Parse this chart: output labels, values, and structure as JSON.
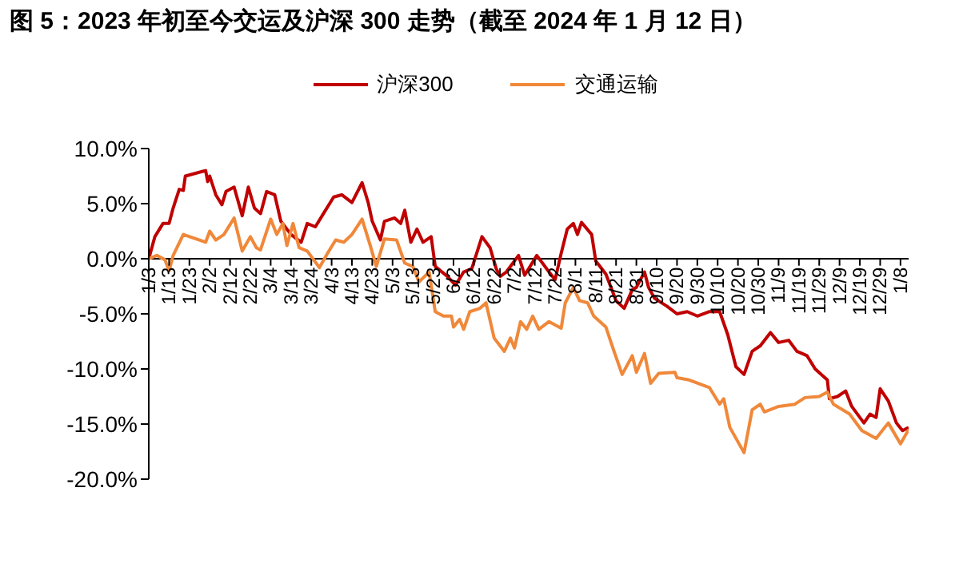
{
  "chart_data": {
    "type": "line",
    "title": "图 5：2023 年初至今交运及沪深 300 走势（截至 2024 年 1 月 12 日）",
    "legend": "top",
    "grid": false,
    "marker": "none",
    "line_style": "solid",
    "xlim": [
      "2023-01-03",
      "2024-01-12"
    ],
    "xticks": [
      {
        "value": "2023-01-03",
        "label": "1/3"
      },
      {
        "value": "2023-01-13",
        "label": "1/13"
      },
      {
        "value": "2023-01-23",
        "label": "1/23"
      },
      {
        "value": "2023-02-02",
        "label": "2/2"
      },
      {
        "value": "2023-02-12",
        "label": "2/12"
      },
      {
        "value": "2023-02-22",
        "label": "2/22"
      },
      {
        "value": "2023-03-04",
        "label": "3/4"
      },
      {
        "value": "2023-03-14",
        "label": "3/14"
      },
      {
        "value": "2023-03-24",
        "label": "3/24"
      },
      {
        "value": "2023-04-03",
        "label": "4/3"
      },
      {
        "value": "2023-04-13",
        "label": "4/13"
      },
      {
        "value": "2023-04-23",
        "label": "4/23"
      },
      {
        "value": "2023-05-03",
        "label": "5/3"
      },
      {
        "value": "2023-05-13",
        "label": "5/13"
      },
      {
        "value": "2023-05-23",
        "label": "5/23"
      },
      {
        "value": "2023-06-02",
        "label": "6/2"
      },
      {
        "value": "2023-06-12",
        "label": "6/12"
      },
      {
        "value": "2023-06-22",
        "label": "6/22"
      },
      {
        "value": "2023-07-02",
        "label": "7/2"
      },
      {
        "value": "2023-07-12",
        "label": "7/12"
      },
      {
        "value": "2023-07-22",
        "label": "7/22"
      },
      {
        "value": "2023-08-01",
        "label": "8/1"
      },
      {
        "value": "2023-08-11",
        "label": "8/11"
      },
      {
        "value": "2023-08-21",
        "label": "8/21"
      },
      {
        "value": "2023-08-31",
        "label": "8/31"
      },
      {
        "value": "2023-09-10",
        "label": "9/10"
      },
      {
        "value": "2023-09-20",
        "label": "9/20"
      },
      {
        "value": "2023-09-30",
        "label": "9/30"
      },
      {
        "value": "2023-10-10",
        "label": "10/10"
      },
      {
        "value": "2023-10-20",
        "label": "10/20"
      },
      {
        "value": "2023-10-30",
        "label": "10/30"
      },
      {
        "value": "2023-11-09",
        "label": "11/9"
      },
      {
        "value": "2023-11-19",
        "label": "11/19"
      },
      {
        "value": "2023-11-29",
        "label": "11/29"
      },
      {
        "value": "2023-12-09",
        "label": "12/9"
      },
      {
        "value": "2023-12-19",
        "label": "12/19"
      },
      {
        "value": "2023-12-29",
        "label": "12/29"
      },
      {
        "value": "2024-01-08",
        "label": "1/8"
      }
    ],
    "ylim": [
      -20,
      10
    ],
    "yticks": [
      {
        "value": -20,
        "label": "-20.0%"
      },
      {
        "value": -15,
        "label": "-15.0%"
      },
      {
        "value": -10,
        "label": "-10.0%"
      },
      {
        "value": -5,
        "label": "-5.0%"
      },
      {
        "value": 0,
        "label": "0.0%"
      },
      {
        "value": 5,
        "label": "5.0%"
      },
      {
        "value": 10,
        "label": "10.0%"
      }
    ],
    "series": [
      {
        "name": "沪深300",
        "color": "#c00000",
        "x": [
          "2023-01-03",
          "2023-01-06",
          "2023-01-10",
          "2023-01-13",
          "2023-01-15",
          "2023-01-18",
          "2023-01-20",
          "2023-01-21",
          "2023-01-31",
          "2023-02-01",
          "2023-02-02",
          "2023-02-05",
          "2023-02-08",
          "2023-02-10",
          "2023-02-14",
          "2023-02-18",
          "2023-02-21",
          "2023-02-24",
          "2023-02-27",
          "2023-03-02",
          "2023-03-06",
          "2023-03-09",
          "2023-03-14",
          "2023-03-19",
          "2023-03-22",
          "2023-03-26",
          "2023-03-30",
          "2023-04-04",
          "2023-04-08",
          "2023-04-13",
          "2023-04-18",
          "2023-04-21",
          "2023-04-23",
          "2023-04-27",
          "2023-04-29",
          "2023-05-04",
          "2023-05-07",
          "2023-05-09",
          "2023-05-12",
          "2023-05-15",
          "2023-05-18",
          "2023-05-22",
          "2023-05-24",
          "2023-05-30",
          "2023-06-03",
          "2023-06-07",
          "2023-06-11",
          "2023-06-16",
          "2023-06-20",
          "2023-06-23",
          "2023-06-25",
          "2023-06-28",
          "2023-07-04",
          "2023-07-07",
          "2023-07-13",
          "2023-07-19",
          "2023-07-22",
          "2023-07-25",
          "2023-07-28",
          "2023-07-31",
          "2023-08-02",
          "2023-08-04",
          "2023-08-09",
          "2023-08-11",
          "2023-08-16",
          "2023-08-21",
          "2023-08-25",
          "2023-08-29",
          "2023-08-31",
          "2023-09-04",
          "2023-09-06",
          "2023-09-09",
          "2023-09-15",
          "2023-09-20",
          "2023-09-25",
          "2023-09-30",
          "2023-10-06",
          "2023-10-11",
          "2023-10-15",
          "2023-10-19",
          "2023-10-23",
          "2023-10-27",
          "2023-10-31",
          "2023-11-05",
          "2023-11-09",
          "2023-11-14",
          "2023-11-18",
          "2023-11-23",
          "2023-11-27",
          "2023-12-03",
          "2023-12-04",
          "2023-12-08",
          "2023-12-12",
          "2023-12-15",
          "2023-12-21",
          "2023-12-24",
          "2023-12-27",
          "2023-12-29",
          "2024-01-02",
          "2024-01-06",
          "2024-01-09",
          "2024-01-12"
        ],
        "values": [
          0,
          2.0,
          3.2,
          3.2,
          4.6,
          6.3,
          6.2,
          7.5,
          8.0,
          7.0,
          7.5,
          5.8,
          4.9,
          6.1,
          6.5,
          3.9,
          6.5,
          4.6,
          4.1,
          6.1,
          5.8,
          3.4,
          2.2,
          1.5,
          3.2,
          2.9,
          4.1,
          5.6,
          5.8,
          5.1,
          6.9,
          5.1,
          3.4,
          1.7,
          3.4,
          3.7,
          3.2,
          4.4,
          1.5,
          2.7,
          1.5,
          2.0,
          -0.7,
          -1.6,
          -2.4,
          -1.2,
          -0.9,
          2.0,
          1.0,
          -0.9,
          -1.6,
          -1.2,
          0.3,
          -1.5,
          0.3,
          -1.2,
          -1.9,
          0.5,
          2.7,
          3.2,
          2.2,
          3.3,
          2.2,
          -0.2,
          -1.4,
          -3.8,
          -4.5,
          -2.8,
          -2.6,
          -1.2,
          -2.6,
          -3.6,
          -4.3,
          -5.0,
          -4.8,
          -5.2,
          -4.8,
          -4.8,
          -6.9,
          -9.8,
          -10.5,
          -8.4,
          -7.9,
          -6.7,
          -7.6,
          -7.4,
          -8.4,
          -8.8,
          -10.0,
          -11.0,
          -12.7,
          -12.5,
          -12.0,
          -13.4,
          -14.9,
          -14.1,
          -14.4,
          -11.8,
          -12.9,
          -14.9,
          -15.6,
          -15.3
        ]
      },
      {
        "name": "交通运输",
        "color": "#f0883a",
        "x": [
          "2023-01-03",
          "2023-01-07",
          "2023-01-11",
          "2023-01-13",
          "2023-01-15",
          "2023-01-20",
          "2023-01-31",
          "2023-02-02",
          "2023-02-05",
          "2023-02-09",
          "2023-02-14",
          "2023-02-18",
          "2023-02-22",
          "2023-02-25",
          "2023-02-27",
          "2023-03-04",
          "2023-03-07",
          "2023-03-10",
          "2023-03-12",
          "2023-03-15",
          "2023-03-18",
          "2023-03-22",
          "2023-03-28",
          "2023-04-01",
          "2023-04-05",
          "2023-04-09",
          "2023-04-13",
          "2023-04-18",
          "2023-04-22",
          "2023-04-25",
          "2023-04-29",
          "2023-05-05",
          "2023-05-09",
          "2023-05-13",
          "2023-05-16",
          "2023-05-21",
          "2023-05-24",
          "2023-05-28",
          "2023-06-01",
          "2023-06-02",
          "2023-06-05",
          "2023-06-07",
          "2023-06-10",
          "2023-06-15",
          "2023-06-18",
          "2023-06-22",
          "2023-06-27",
          "2023-06-30",
          "2023-07-02",
          "2023-07-05",
          "2023-07-08",
          "2023-07-11",
          "2023-07-14",
          "2023-07-19",
          "2023-07-25",
          "2023-07-27",
          "2023-07-31",
          "2023-08-03",
          "2023-08-07",
          "2023-08-10",
          "2023-08-16",
          "2023-08-20",
          "2023-08-24",
          "2023-08-29",
          "2023-08-31",
          "2023-09-04",
          "2023-09-07",
          "2023-09-11",
          "2023-09-19",
          "2023-09-20",
          "2023-09-26",
          "2023-10-06",
          "2023-10-11",
          "2023-10-13",
          "2023-10-16",
          "2023-10-23",
          "2023-10-27",
          "2023-10-31",
          "2023-11-02",
          "2023-11-09",
          "2023-11-17",
          "2023-11-22",
          "2023-11-29",
          "2023-12-03",
          "2023-12-06",
          "2023-12-14",
          "2023-12-20",
          "2023-12-27",
          "2024-01-02",
          "2024-01-08",
          "2024-01-12"
        ],
        "values": [
          0,
          0.3,
          -0.1,
          -1.1,
          0.3,
          2.2,
          1.5,
          2.5,
          1.7,
          2.2,
          3.7,
          0.7,
          2.0,
          1.0,
          0.8,
          3.6,
          2.2,
          3.2,
          1.2,
          3.2,
          1.0,
          0.7,
          -0.8,
          0.5,
          1.7,
          1.5,
          2.2,
          3.6,
          1.2,
          -0.7,
          1.8,
          1.7,
          -0.4,
          -0.7,
          -2.1,
          -1.2,
          -4.8,
          -5.2,
          -5.2,
          -6.2,
          -5.5,
          -6.4,
          -4.8,
          -4.5,
          -4.0,
          -7.2,
          -8.4,
          -7.2,
          -8.1,
          -5.7,
          -6.4,
          -5.2,
          -6.4,
          -5.7,
          -6.3,
          -4.0,
          -2.6,
          -3.8,
          -4.0,
          -5.2,
          -6.2,
          -8.4,
          -10.5,
          -8.8,
          -10.3,
          -8.6,
          -11.3,
          -10.4,
          -10.3,
          -10.8,
          -11.0,
          -11.7,
          -13.2,
          -12.7,
          -15.3,
          -17.6,
          -13.7,
          -13.2,
          -13.9,
          -13.4,
          -13.2,
          -12.6,
          -12.5,
          -12.1,
          -13.2,
          -14.1,
          -15.6,
          -16.3,
          -14.9,
          -16.8,
          -15.5
        ]
      }
    ]
  }
}
